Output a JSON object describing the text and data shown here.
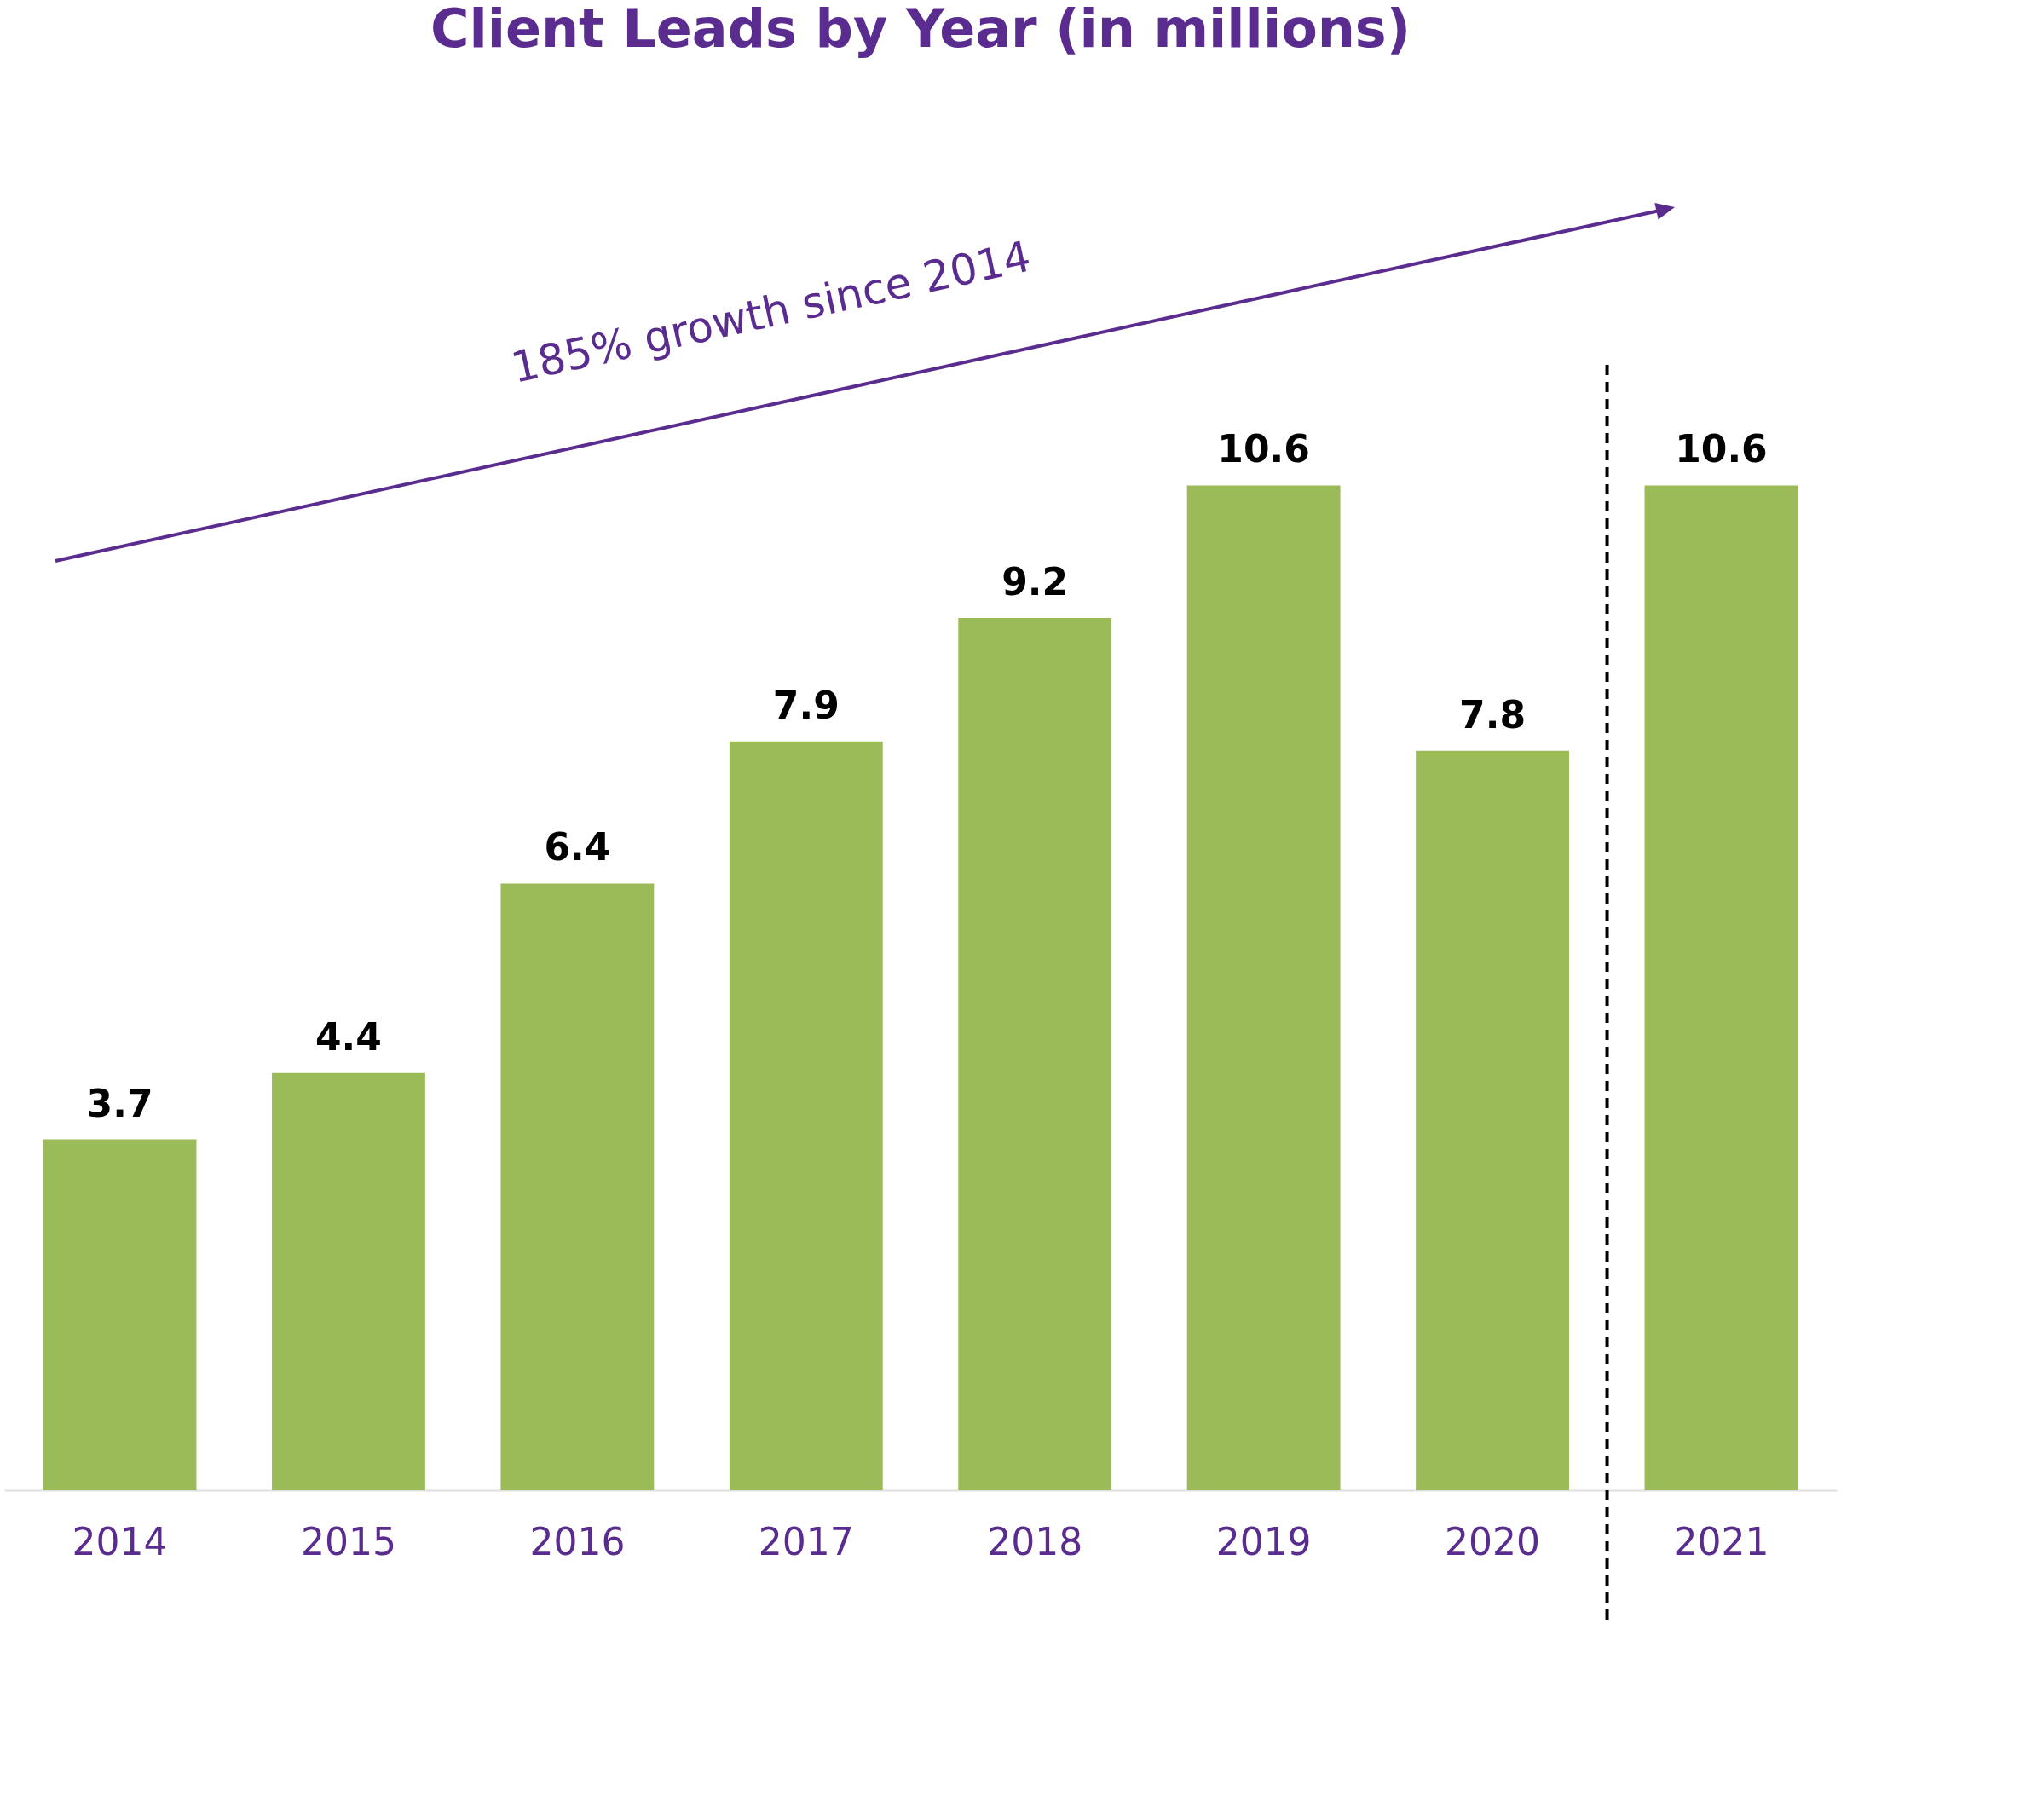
{
  "chart_data": {
    "type": "bar",
    "title": "Client Leads by Year (in millions)",
    "categories": [
      "2014",
      "2015",
      "2016",
      "2017",
      "2018",
      "2019",
      "2020",
      "2021"
    ],
    "values": [
      3.7,
      4.4,
      6.4,
      7.9,
      9.2,
      10.6,
      7.8,
      10.6
    ],
    "color": "#9bbb59",
    "data_labels": true,
    "grid": false,
    "annotations": [
      "185% growth since 2014"
    ]
  }
}
